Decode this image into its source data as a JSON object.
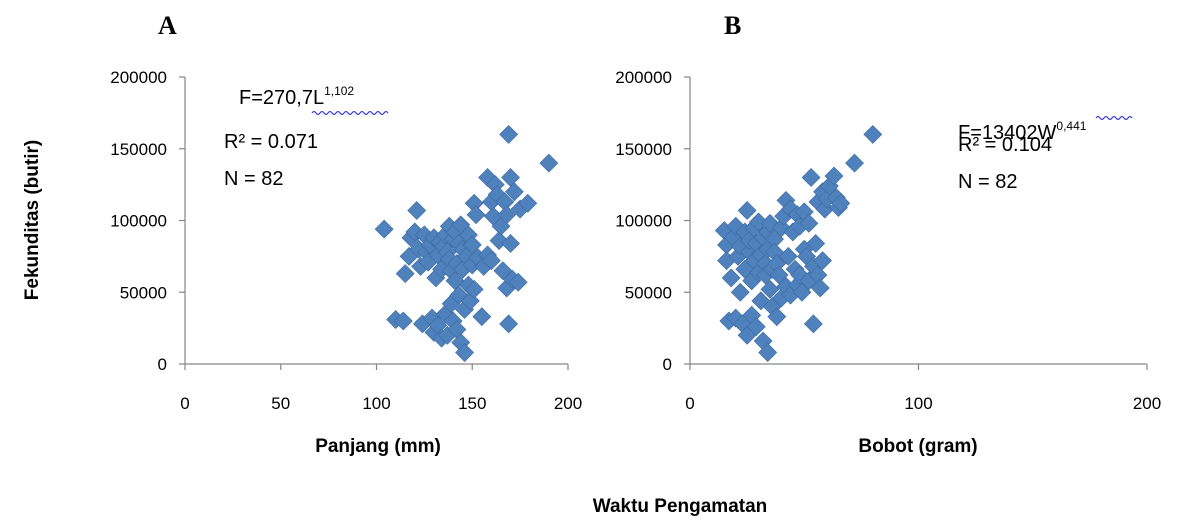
{
  "ylabel": "Fekunditas (butir)",
  "footer_label": "Waktu Pengamatan",
  "chart_data": [
    {
      "type": "scatter",
      "panel": "A",
      "xlabel": "Panjang (mm)",
      "ylabel": "Fekunditas (butir)",
      "xlim": [
        0,
        200
      ],
      "ylim": [
        0,
        200000
      ],
      "xticks": [
        "0",
        "50",
        "100",
        "150",
        "200"
      ],
      "yticks": [
        "0",
        "50000",
        "100000",
        "150000",
        "200000"
      ],
      "equation_base": "F=270,7L",
      "equation_exp": "1,102",
      "r2": "R² = 0.071",
      "n": "N = 82",
      "marker_color": "#4F81BD",
      "points": [
        [
          104,
          94
        ],
        [
          110,
          31
        ],
        [
          114,
          30
        ],
        [
          115,
          63
        ],
        [
          117,
          75
        ],
        [
          118,
          88
        ],
        [
          120,
          92
        ],
        [
          121,
          107
        ],
        [
          122,
          80
        ],
        [
          123,
          68
        ],
        [
          124,
          28
        ],
        [
          125,
          90
        ],
        [
          126,
          78
        ],
        [
          127,
          71
        ],
        [
          128,
          83
        ],
        [
          129,
          32
        ],
        [
          130,
          88
        ],
        [
          130,
          22
        ],
        [
          131,
          60
        ],
        [
          132,
          76
        ],
        [
          132,
          27
        ],
        [
          133,
          85
        ],
        [
          134,
          18
        ],
        [
          134,
          66
        ],
        [
          135,
          82
        ],
        [
          136,
          90
        ],
        [
          136,
          35
        ],
        [
          137,
          78
        ],
        [
          137,
          20
        ],
        [
          138,
          73
        ],
        [
          138,
          96
        ],
        [
          139,
          65
        ],
        [
          139,
          42
        ],
        [
          140,
          87
        ],
        [
          140,
          30
        ],
        [
          141,
          92
        ],
        [
          141,
          58
        ],
        [
          142,
          70
        ],
        [
          142,
          24
        ],
        [
          143,
          84
        ],
        [
          143,
          48
        ],
        [
          144,
          97
        ],
        [
          144,
          15
        ],
        [
          145,
          66
        ],
        [
          145,
          80
        ],
        [
          146,
          8
        ],
        [
          146,
          38
        ],
        [
          147,
          75
        ],
        [
          148,
          90
        ],
        [
          148,
          55
        ],
        [
          149,
          44
        ],
        [
          150,
          83
        ],
        [
          150,
          69
        ],
        [
          151,
          112
        ],
        [
          151,
          52
        ],
        [
          152,
          104
        ],
        [
          153,
          74
        ],
        [
          155,
          33
        ],
        [
          156,
          68
        ],
        [
          158,
          130
        ],
        [
          158,
          76
        ],
        [
          160,
          113
        ],
        [
          160,
          72
        ],
        [
          161,
          103
        ],
        [
          162,
          125
        ],
        [
          163,
          118
        ],
        [
          164,
          86
        ],
        [
          165,
          96
        ],
        [
          166,
          65
        ],
        [
          167,
          113
        ],
        [
          168,
          53
        ],
        [
          168,
          104
        ],
        [
          169,
          28
        ],
        [
          169,
          160
        ],
        [
          170,
          130
        ],
        [
          170,
          84
        ],
        [
          171,
          59
        ],
        [
          172,
          120
        ],
        [
          174,
          57
        ],
        [
          175,
          108
        ],
        [
          179,
          112
        ],
        [
          190,
          140
        ]
      ]
    },
    {
      "type": "scatter",
      "panel": "B",
      "xlabel": "Bobot (gram)",
      "ylabel": "Fekunditas (butir)",
      "xlim": [
        0,
        200
      ],
      "ylim": [
        0,
        200000
      ],
      "xticks": [
        "0",
        "100",
        "200"
      ],
      "yticks": [
        "0",
        "50000",
        "100000",
        "150000",
        "200000"
      ],
      "equation_base": "F=13402W",
      "equation_exp": "0,441",
      "r2": "R² = 0.104",
      "n": "N = 82",
      "marker_color": "#4F81BD",
      "points": [
        [
          15,
          93
        ],
        [
          16,
          83
        ],
        [
          16,
          72
        ],
        [
          17,
          30
        ],
        [
          18,
          60
        ],
        [
          19,
          88
        ],
        [
          20,
          96
        ],
        [
          20,
          32
        ],
        [
          21,
          75
        ],
        [
          22,
          50
        ],
        [
          22,
          82
        ],
        [
          23,
          28
        ],
        [
          24,
          66
        ],
        [
          24,
          92
        ],
        [
          25,
          107
        ],
        [
          25,
          20
        ],
        [
          26,
          78
        ],
        [
          26,
          86
        ],
        [
          27,
          58
        ],
        [
          27,
          34
        ],
        [
          28,
          95
        ],
        [
          28,
          72
        ],
        [
          29,
          26
        ],
        [
          29,
          84
        ],
        [
          30,
          64
        ],
        [
          30,
          99
        ],
        [
          31,
          76
        ],
        [
          31,
          44
        ],
        [
          32,
          88
        ],
        [
          32,
          16
        ],
        [
          33,
          70
        ],
        [
          33,
          62
        ],
        [
          34,
          92
        ],
        [
          34,
          80
        ],
        [
          34,
          8
        ],
        [
          35,
          98
        ],
        [
          35,
          52
        ],
        [
          36,
          66
        ],
        [
          36,
          40
        ],
        [
          37,
          87
        ],
        [
          37,
          78
        ],
        [
          38,
          33
        ],
        [
          38,
          70
        ],
        [
          39,
          62
        ],
        [
          40,
          95
        ],
        [
          40,
          46
        ],
        [
          41,
          103
        ],
        [
          42,
          114
        ],
        [
          42,
          54
        ],
        [
          43,
          75
        ],
        [
          44,
          108
        ],
        [
          44,
          48
        ],
        [
          45,
          92
        ],
        [
          46,
          66
        ],
        [
          47,
          104
        ],
        [
          47,
          55
        ],
        [
          48,
          96
        ],
        [
          48,
          62
        ],
        [
          49,
          50
        ],
        [
          50,
          80
        ],
        [
          50,
          106
        ],
        [
          51,
          75
        ],
        [
          52,
          98
        ],
        [
          52,
          58
        ],
        [
          53,
          130
        ],
        [
          54,
          68
        ],
        [
          54,
          28
        ],
        [
          55,
          84
        ],
        [
          56,
          113
        ],
        [
          56,
          62
        ],
        [
          57,
          53
        ],
        [
          58,
          120
        ],
        [
          58,
          72
        ],
        [
          59,
          108
        ],
        [
          60,
          115
        ],
        [
          61,
          124
        ],
        [
          63,
          131
        ],
        [
          64,
          116
        ],
        [
          65,
          109
        ],
        [
          66,
          112
        ],
        [
          72,
          140
        ],
        [
          80,
          160
        ]
      ]
    }
  ]
}
